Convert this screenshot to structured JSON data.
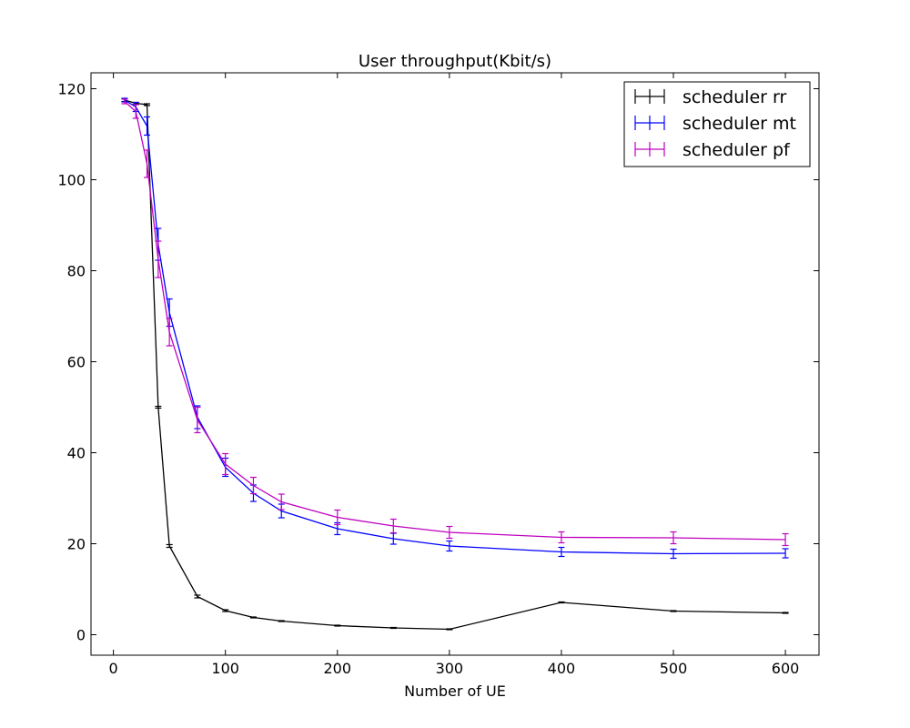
{
  "chart_data": {
    "type": "line",
    "title": "User throughput(Kbit/s)",
    "xlabel": "Number of UE",
    "ylabel": "",
    "xlim": [
      -20,
      630
    ],
    "ylim": [
      -4.5,
      123.5
    ],
    "xticks": [
      0,
      100,
      200,
      300,
      400,
      500,
      600
    ],
    "yticks": [
      0,
      20,
      40,
      60,
      80,
      100,
      120
    ],
    "grid": false,
    "legend_position": "top-right",
    "series": [
      {
        "name": "scheduler rr",
        "color": "#000000",
        "x": [
          10,
          20,
          30,
          40,
          50,
          75,
          100,
          125,
          150,
          200,
          250,
          300,
          400,
          500,
          600
        ],
        "y": [
          117.5,
          116.8,
          116.5,
          50.0,
          19.5,
          8.4,
          5.3,
          3.8,
          3.0,
          2.0,
          1.5,
          1.2,
          7.1,
          5.2,
          4.8
        ],
        "err": [
          0.3,
          0.2,
          0.2,
          0.2,
          0.3,
          0.3,
          0.2,
          0.1,
          0.1,
          0.1,
          0.1,
          0.1,
          0.1,
          0.1,
          0.1
        ]
      },
      {
        "name": "scheduler mt",
        "color": "#0000ff",
        "x": [
          10,
          20,
          30,
          40,
          50,
          75,
          100,
          125,
          150,
          200,
          250,
          300,
          400,
          500,
          600
        ],
        "y": [
          117.5,
          116.0,
          111.8,
          85.8,
          70.8,
          47.8,
          36.8,
          31.1,
          27.2,
          23.3,
          21.1,
          19.5,
          18.2,
          17.8,
          17.9
        ],
        "err": [
          0.4,
          1.0,
          2.0,
          3.5,
          3.0,
          2.5,
          2.0,
          1.8,
          1.5,
          1.3,
          1.2,
          1.1,
          1.0,
          1.0,
          1.0
        ]
      },
      {
        "name": "scheduler pf",
        "color": "#bf00bf",
        "x": [
          10,
          20,
          30,
          40,
          50,
          75,
          100,
          125,
          150,
          200,
          250,
          300,
          400,
          500,
          600
        ],
        "y": [
          117.2,
          115.0,
          103.5,
          82.5,
          66.5,
          47.2,
          37.5,
          32.8,
          29.2,
          25.8,
          23.9,
          22.5,
          21.4,
          21.3,
          20.9
        ],
        "err": [
          0.5,
          1.5,
          3.0,
          4.0,
          3.0,
          2.8,
          2.3,
          1.8,
          1.7,
          1.6,
          1.5,
          1.3,
          1.2,
          1.3,
          1.3
        ]
      }
    ]
  }
}
